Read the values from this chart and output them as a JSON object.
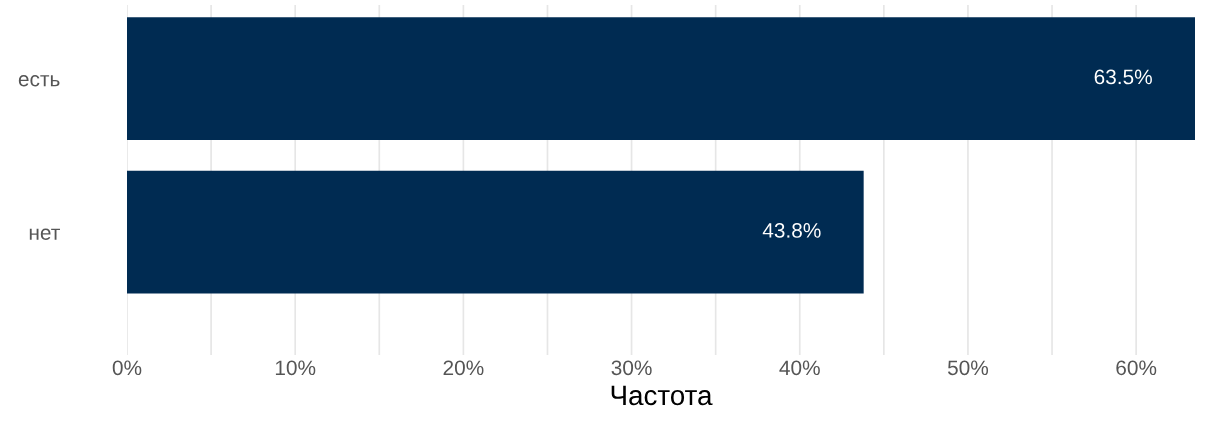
{
  "chart_data": {
    "type": "bar",
    "orientation": "horizontal",
    "xlabel": "Частота",
    "categories": [
      "есть",
      "нет"
    ],
    "values": [
      63.5,
      43.8
    ],
    "color": "#002b52",
    "value_labels": [
      "63.5%",
      "43.8%"
    ],
    "xlim": [
      0,
      63.5
    ],
    "xticks": [
      {
        "value": 0,
        "label": "0%"
      },
      {
        "value": 5,
        "label": null
      },
      {
        "value": 10,
        "label": "10%"
      },
      {
        "value": 15,
        "label": null
      },
      {
        "value": 20,
        "label": "20%"
      },
      {
        "value": 25,
        "label": null
      },
      {
        "value": 30,
        "label": "30%"
      },
      {
        "value": 35,
        "label": null
      },
      {
        "value": 40,
        "label": "40%"
      },
      {
        "value": 45,
        "label": null
      },
      {
        "value": 50,
        "label": "50%"
      },
      {
        "value": 55,
        "label": null
      },
      {
        "value": 60,
        "label": "60%"
      }
    ],
    "grid": "x"
  }
}
